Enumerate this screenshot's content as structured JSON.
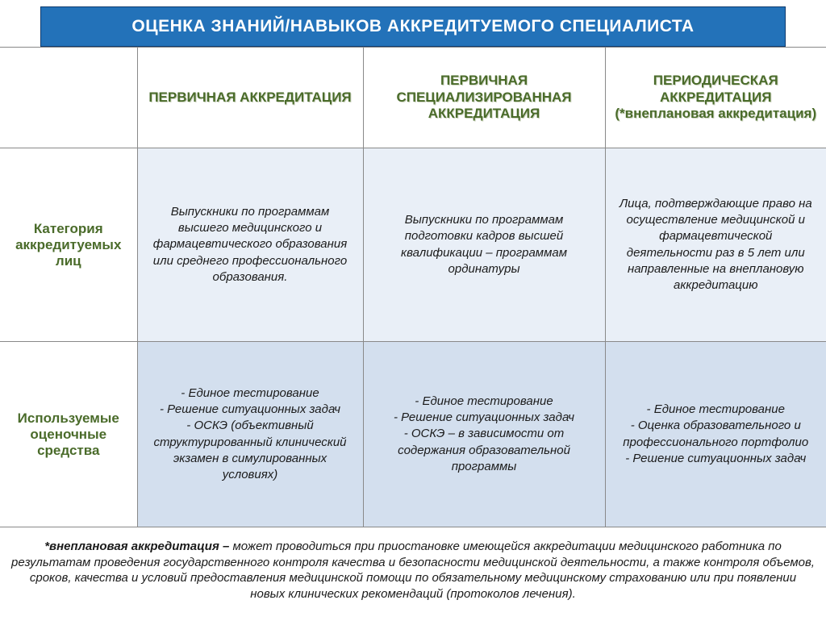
{
  "title": "ОЦЕНКА ЗНАНИЙ/НАВЫКОВ АККРЕДИТУЕМОГО СПЕЦИАЛИСТА",
  "columns": {
    "c1": "ПЕРВИЧНАЯ АККРЕДИТАЦИЯ",
    "c2": "ПЕРВИЧНАЯ СПЕЦИАЛИЗИРОВАННАЯ АККРЕДИТАЦИЯ",
    "c3": "ПЕРИОДИЧЕСКАЯ АККРЕДИТАЦИЯ (*внеплановая аккредитация)"
  },
  "rows": {
    "r1_label": "Категория аккредитуемых лиц",
    "r2_label": "Используемые оценочные средства"
  },
  "cells": {
    "r1c1": "Выпускники по программам высшего медицинского и фармацевтического образования или среднего профессионального образования.",
    "r1c2": "Выпускники по программам подготовки кадров высшей квалификации – программам ординатуры",
    "r1c3": "Лица, подтверждающие право на осуществление медицинской и фармацевтической деятельности раз в 5 лет или направленные на внеплановую аккредитацию",
    "r2c1": "- Единое тестирование\n- Решение ситуационных задач\n- ОСКЭ (объективный структурированный клинический экзамен в симулированных условиях)",
    "r2c2": "- Единое тестирование\n- Решение ситуационных задач\n- ОСКЭ – в зависимости от содержания образовательной программы",
    "r2c3": "- Единое тестирование\n- Оценка образовательного и профессионального портфолио\n- Решение ситуационных задач"
  },
  "footnote": {
    "lead": "*внеплановая аккредитация – ",
    "body": "может проводиться при приостановке имеющейся аккредитации медицинского работника по результатам проведения государственного контроля качества и безопасности медицинской деятельности, а также контроля объемов, сроков, качества и условий предоставления медицинской помощи по обязательному медицинскому страхованию или при появлении новых клинических рекомендаций (протоколов лечения)."
  },
  "colors": {
    "title_bg": "#2372b9",
    "title_border": "#0d3a6e",
    "header_text": "#4a6b2a",
    "row1_bg": "#e9eff7",
    "row2_bg": "#d3dfee",
    "border": "#898989"
  }
}
